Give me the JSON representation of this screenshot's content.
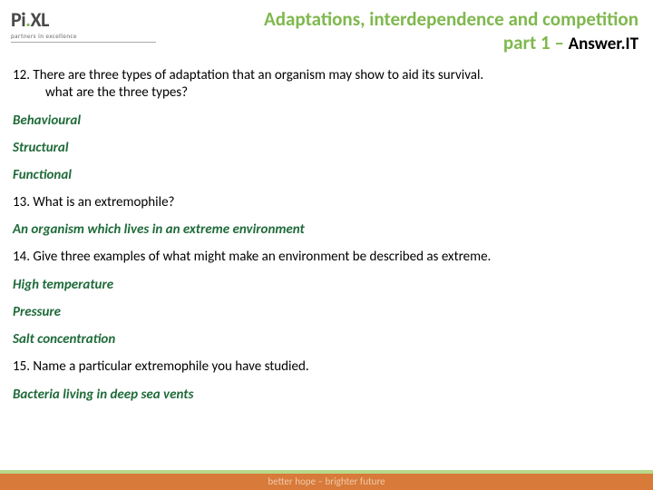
{
  "logo": {
    "pre": "Pi",
    "post": "XL",
    "tagline": "partners in excellence"
  },
  "title": {
    "line1": "Adaptations, interdependence and competition",
    "line2_green": "part 1 – ",
    "line2_black": "Answer.IT"
  },
  "items": [
    {
      "type": "question",
      "text": "12. There are three types of adaptation that an organism may show to aid its survival.",
      "indent_next": "what are the three types?"
    },
    {
      "type": "answer",
      "text": "Behavioural"
    },
    {
      "type": "answer",
      "text": "Structural"
    },
    {
      "type": "answer",
      "text": "Functional"
    },
    {
      "type": "question",
      "text": "13. What is an extremophile?"
    },
    {
      "type": "answer",
      "text": "An organism which lives in an extreme environment"
    },
    {
      "type": "question",
      "text": "14. Give three examples of what might make an environment be described as extreme."
    },
    {
      "type": "answer",
      "text": "High temperature"
    },
    {
      "type": "answer",
      "text": "Pressure"
    },
    {
      "type": "answer",
      "text": "Salt concentration"
    },
    {
      "type": "question",
      "text": "15. Name a particular extremophile you have studied."
    },
    {
      "type": "answer",
      "text": "Bacteria living in deep sea vents"
    }
  ],
  "footer": "better hope – brighter future",
  "colors": {
    "green": "#7fb84e",
    "dark_green": "#1f6b3a",
    "orange": "#d87a3a",
    "light_green": "#b8d88a"
  }
}
